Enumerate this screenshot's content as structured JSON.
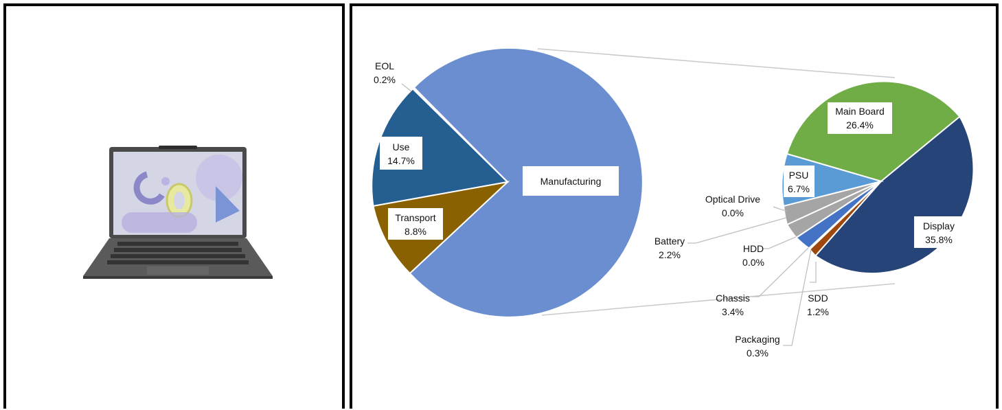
{
  "colors": {
    "manufacturing": "#6a8ecf",
    "use": "#255e91",
    "transport": "#8a6100",
    "eol": "#ffffff",
    "main_board": "#70ad47",
    "display": "#264478",
    "sdd": "#9e480e",
    "packaging": "#b0b0b0",
    "chassis": "#4472c4",
    "hdd": "#4472c4",
    "battery": "#a5a5a5",
    "optical_drive": "#a5a5a5",
    "psu": "#5b9bd5"
  },
  "image": {
    "subject": "laptop-icon"
  },
  "chart_data": [
    {
      "type": "pie",
      "series": [
        {
          "label": "Manufacturing",
          "value": null
        },
        {
          "label": "Use",
          "value": 14.7,
          "value_text": "14.7%"
        },
        {
          "label": "Transport",
          "value": 8.8,
          "value_text": "8.8%"
        },
        {
          "label": "EOL",
          "value": 0.2,
          "value_text": "0.2%"
        }
      ]
    },
    {
      "type": "pie",
      "series": [
        {
          "label": "Main Board",
          "value": 26.4,
          "value_text": "26.4%"
        },
        {
          "label": "Display",
          "value": 35.8,
          "value_text": "35.8%"
        },
        {
          "label": "SDD",
          "value": 1.2,
          "value_text": "1.2%"
        },
        {
          "label": "Packaging",
          "value": 0.3,
          "value_text": "0.3%"
        },
        {
          "label": "Chassis",
          "value": 3.4,
          "value_text": "3.4%"
        },
        {
          "label": "HDD",
          "value": 0.0,
          "value_text": "0.0%"
        },
        {
          "label": "Battery",
          "value": 2.2,
          "value_text": "2.2%"
        },
        {
          "label": "Optical Drive",
          "value": 0.0,
          "value_text": "0.0%"
        },
        {
          "label": "PSU",
          "value": 6.7,
          "value_text": "6.7%"
        }
      ]
    }
  ]
}
